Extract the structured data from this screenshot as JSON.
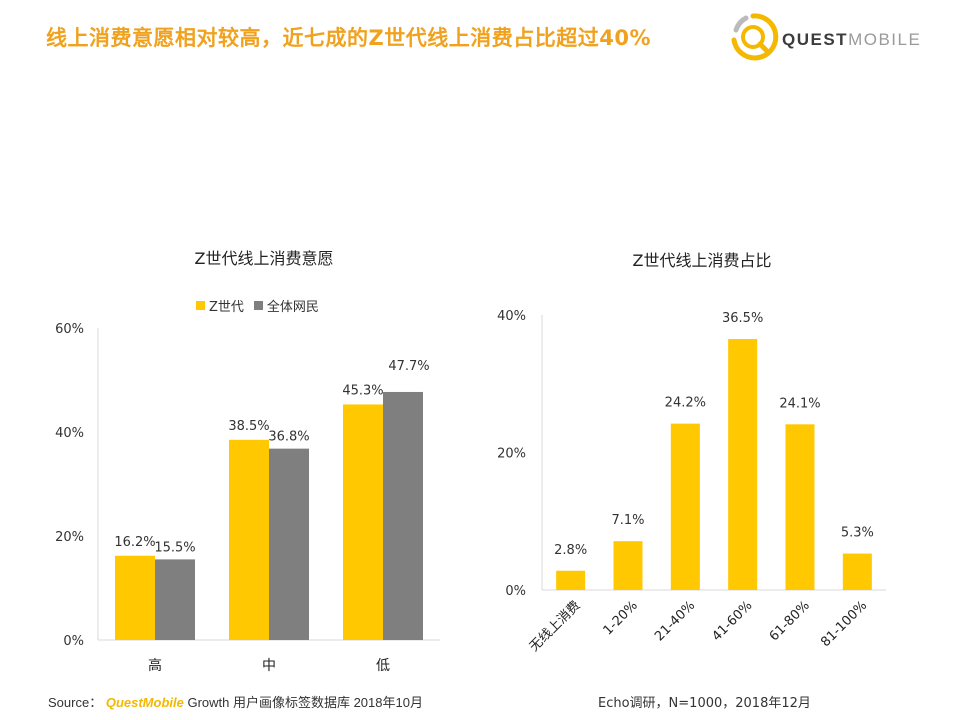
{
  "headline": "线上消费意愿相对较高，近七成的Z世代线上消费占比超过40%",
  "brand": {
    "bold": "QUEST",
    "light": "MOBILE",
    "logo_icon": "questmobile-logo-icon",
    "accent": "#f5b800"
  },
  "footer": {
    "source_label": "Source：",
    "source_brand": "QuestMobile",
    "source_rest": " Growth 用户画像标签数据库 2018年10月",
    "right": "Echo调研，N=1000，2018年12月"
  },
  "chart_data": [
    {
      "type": "bar",
      "title": "Z世代线上消费意愿",
      "categories": [
        "高",
        "中",
        "低"
      ],
      "series": [
        {
          "name": "Z世代",
          "values": [
            16.2,
            38.5,
            45.3
          ],
          "labels": [
            "16.2%",
            "38.5%",
            "45.3%"
          ],
          "color": "#ffc800"
        },
        {
          "name": "全体网民",
          "values": [
            15.5,
            36.8,
            47.7
          ],
          "labels": [
            "15.5%",
            "36.8%",
            "47.7%"
          ],
          "color": "#7f7f7f"
        }
      ],
      "ylim": [
        0,
        60
      ],
      "yticks": [
        "0%",
        "20%",
        "40%",
        "60%"
      ],
      "legend": "top",
      "grid": false
    },
    {
      "type": "bar",
      "title": "Z世代线上消费占比",
      "categories": [
        "无线上消费",
        "1-20%",
        "21-40%",
        "41-60%",
        "61-80%",
        "81-100%"
      ],
      "values": [
        2.8,
        7.1,
        24.2,
        36.5,
        24.1,
        5.3
      ],
      "labels": [
        "2.8%",
        "7.1%",
        "24.2%",
        "36.5%",
        "24.1%",
        "5.3%"
      ],
      "color": "#ffc800",
      "ylim": [
        0,
        40
      ],
      "yticks": [
        "0%",
        "20%",
        "40%"
      ],
      "grid": false
    }
  ]
}
